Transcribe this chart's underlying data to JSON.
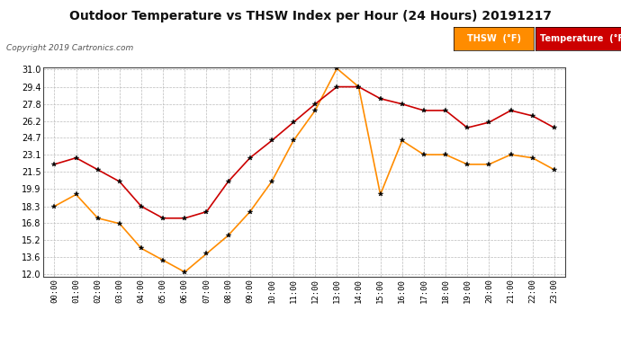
{
  "title": "Outdoor Temperature vs THSW Index per Hour (24 Hours) 20191217",
  "copyright": "Copyright 2019 Cartronics.com",
  "hours": [
    "00:00",
    "01:00",
    "02:00",
    "03:00",
    "04:00",
    "05:00",
    "06:00",
    "07:00",
    "08:00",
    "09:00",
    "10:00",
    "11:00",
    "12:00",
    "13:00",
    "14:00",
    "15:00",
    "16:00",
    "17:00",
    "18:00",
    "19:00",
    "20:00",
    "21:00",
    "22:00",
    "23:00"
  ],
  "temperature": [
    22.2,
    22.8,
    21.7,
    20.6,
    18.3,
    17.2,
    17.2,
    17.8,
    20.6,
    22.8,
    24.4,
    26.1,
    27.8,
    29.4,
    29.4,
    28.3,
    27.8,
    27.2,
    27.2,
    25.6,
    26.1,
    27.2,
    26.7,
    25.6
  ],
  "thsw": [
    18.3,
    19.4,
    17.2,
    16.7,
    14.4,
    13.3,
    12.2,
    13.9,
    15.6,
    17.8,
    20.6,
    24.4,
    27.2,
    31.1,
    29.4,
    19.4,
    24.4,
    23.1,
    23.1,
    22.2,
    22.2,
    23.1,
    22.8,
    21.7
  ],
  "temp_color": "#cc0000",
  "thsw_color": "#ff8c00",
  "marker_color": "#000000",
  "yticks": [
    12.0,
    13.6,
    15.2,
    16.8,
    18.3,
    19.9,
    21.5,
    23.1,
    24.7,
    26.2,
    27.8,
    29.4,
    31.0
  ],
  "ymin": 12.0,
  "ymax": 31.0,
  "bg_color": "#ffffff",
  "grid_color": "#bbbbbb",
  "legend_thsw_bg": "#ff8c00",
  "legend_temp_bg": "#cc0000",
  "legend_text_color": "#ffffff"
}
